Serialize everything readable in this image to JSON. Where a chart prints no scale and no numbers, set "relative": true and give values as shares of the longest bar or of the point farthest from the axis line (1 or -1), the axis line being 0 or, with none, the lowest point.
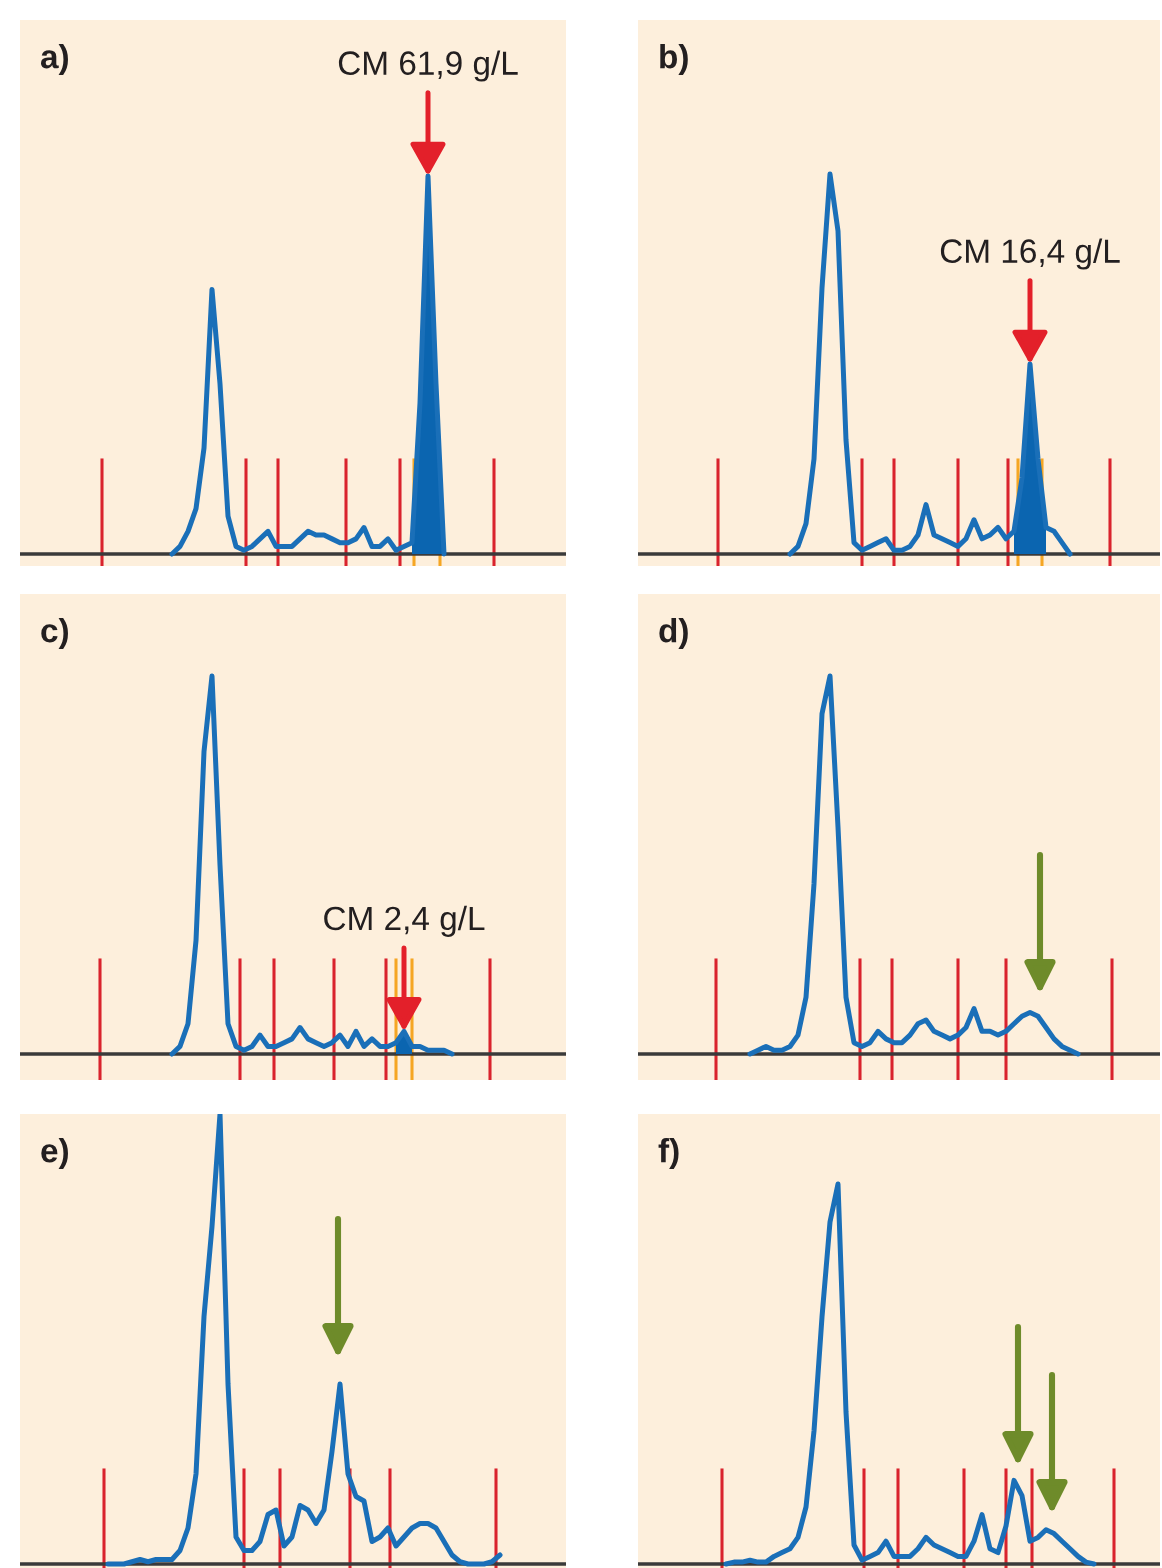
{
  "chart_data": [
    {
      "type": "line",
      "title": "a)",
      "relative": true,
      "categories": [
        null,
        null,
        null,
        null,
        null,
        null,
        null,
        null,
        null,
        null,
        null,
        null,
        null,
        null,
        null,
        null,
        null,
        null,
        null,
        null,
        null,
        null,
        null,
        null,
        null,
        null,
        null,
        null,
        null,
        null,
        null,
        null,
        null,
        null,
        null,
        null,
        null,
        null,
        null,
        null,
        null,
        null,
        null,
        null,
        null,
        null,
        null,
        null,
        null,
        null,
        null,
        null,
        null,
        null,
        null,
        null,
        null,
        null,
        null,
        null,
        null,
        null,
        null,
        null,
        null,
        null,
        null,
        null,
        null
      ],
      "series": [
        {
          "color": "#1a6fb8",
          "values": [
            null,
            null,
            null,
            null,
            null,
            null,
            null,
            null,
            null,
            null,
            null,
            null,
            null,
            null,
            null,
            null,
            null,
            null,
            null,
            0,
            0.02,
            0.06,
            0.12,
            0.28,
            0.7,
            0.45,
            0.1,
            0.02,
            0.01,
            0.02,
            0.04,
            0.06,
            0.02,
            0.02,
            0.02,
            0.04,
            0.06,
            0.05,
            0.05,
            0.04,
            0.03,
            0.03,
            0.04,
            0.07,
            0.02,
            0.02,
            0.04,
            0.01,
            0.02,
            0.03,
            0.4,
            1.0,
            0.45,
            0,
            null,
            null,
            null,
            null,
            null,
            null,
            null,
            null,
            null,
            null,
            null,
            null,
            null,
            null,
            null
          ]
        },
        {
          "type": "area",
          "color": "#0b65b0",
          "values": [
            null,
            null,
            null,
            null,
            null,
            null,
            null,
            null,
            null,
            null,
            null,
            null,
            null,
            null,
            null,
            null,
            null,
            null,
            null,
            null,
            null,
            null,
            null,
            null,
            null,
            null,
            null,
            null,
            null,
            null,
            null,
            null,
            null,
            null,
            null,
            null,
            null,
            null,
            null,
            null,
            null,
            null,
            null,
            null,
            null,
            null,
            null,
            null,
            null,
            0.03,
            0.4,
            1.0,
            0.45,
            0,
            null,
            null,
            null,
            null,
            null,
            null,
            null,
            null,
            null,
            null,
            null,
            null,
            null,
            null,
            null
          ]
        }
      ],
      "annotations": [
        {
          "text": "CM 61,9 g/L",
          "y": 1.0
        }
      ]
    },
    {
      "type": "line",
      "title": "b)",
      "relative": true,
      "categories": [
        null,
        null,
        null,
        null,
        null,
        null,
        null,
        null,
        null,
        null,
        null,
        null,
        null,
        null,
        null,
        null,
        null,
        null,
        null,
        null,
        null,
        null,
        null,
        null,
        null,
        null,
        null,
        null,
        null,
        null,
        null,
        null,
        null,
        null,
        null,
        null,
        null,
        null,
        null,
        null,
        null,
        null,
        null,
        null,
        null,
        null,
        null,
        null,
        null,
        null,
        null,
        null,
        null,
        null,
        null,
        null,
        null,
        null,
        null,
        null,
        null,
        null,
        null,
        null,
        null,
        null
      ],
      "series": [
        {
          "color": "#1a6fb8",
          "values": [
            null,
            null,
            null,
            null,
            null,
            null,
            null,
            null,
            null,
            null,
            null,
            null,
            null,
            null,
            null,
            null,
            null,
            null,
            null,
            0,
            0.02,
            0.08,
            0.25,
            0.7,
            1.0,
            0.85,
            0.3,
            0.03,
            0.01,
            0.02,
            0.03,
            0.04,
            0.01,
            0.01,
            0.02,
            0.05,
            0.13,
            0.05,
            0.04,
            0.03,
            0.02,
            0.04,
            0.09,
            0.04,
            0.05,
            0.07,
            0.04,
            0.06,
            0.2,
            0.5,
            0.25,
            0.07,
            0.06,
            0.03,
            0,
            null,
            null,
            null,
            null,
            null,
            null,
            null,
            null,
            null,
            null,
            null
          ]
        },
        {
          "type": "area",
          "color": "#0b65b0",
          "values": [
            null,
            null,
            null,
            null,
            null,
            null,
            null,
            null,
            null,
            null,
            null,
            null,
            null,
            null,
            null,
            null,
            null,
            null,
            null,
            null,
            null,
            null,
            null,
            null,
            null,
            null,
            null,
            null,
            null,
            null,
            null,
            null,
            null,
            null,
            null,
            null,
            null,
            null,
            null,
            null,
            null,
            null,
            null,
            null,
            null,
            null,
            null,
            0.06,
            0.2,
            0.5,
            0.25,
            0.07,
            null,
            null,
            null,
            null,
            null,
            null,
            null,
            null,
            null,
            null,
            null,
            null,
            null,
            null
          ]
        }
      ],
      "annotations": [
        {
          "text": "CM 16,4 g/L",
          "y": 0.5
        }
      ]
    },
    {
      "type": "line",
      "title": "c)",
      "relative": true,
      "categories": [
        null,
        null,
        null,
        null,
        null,
        null,
        null,
        null,
        null,
        null,
        null,
        null,
        null,
        null,
        null,
        null,
        null,
        null,
        null,
        null,
        null,
        null,
        null,
        null,
        null,
        null,
        null,
        null,
        null,
        null,
        null,
        null,
        null,
        null,
        null,
        null,
        null,
        null,
        null,
        null,
        null,
        null,
        null,
        null,
        null,
        null,
        null,
        null,
        null,
        null,
        null,
        null,
        null,
        null,
        null,
        null,
        null,
        null,
        null,
        null,
        null,
        null,
        null,
        null,
        null,
        null,
        null,
        null,
        null
      ],
      "series": [
        {
          "color": "#1a6fb8",
          "values": [
            null,
            null,
            null,
            null,
            null,
            null,
            null,
            null,
            null,
            null,
            null,
            null,
            null,
            null,
            null,
            null,
            null,
            null,
            null,
            0,
            0.02,
            0.08,
            0.3,
            0.8,
            1.0,
            0.5,
            0.08,
            0.02,
            0.01,
            0.02,
            0.05,
            0.02,
            0.02,
            0.03,
            0.04,
            0.07,
            0.04,
            0.03,
            0.02,
            0.03,
            0.05,
            0.02,
            0.06,
            0.02,
            0.04,
            0.02,
            0.02,
            0.03,
            0.06,
            0.02,
            0.02,
            0.01,
            0.01,
            0.01,
            0,
            null,
            null,
            null,
            null,
            null,
            null,
            null,
            null,
            null,
            null,
            null,
            null,
            null,
            null
          ]
        },
        {
          "type": "area",
          "color": "#0b65b0",
          "values": [
            null,
            null,
            null,
            null,
            null,
            null,
            null,
            null,
            null,
            null,
            null,
            null,
            null,
            null,
            null,
            null,
            null,
            null,
            null,
            null,
            null,
            null,
            null,
            null,
            null,
            null,
            null,
            null,
            null,
            null,
            null,
            null,
            null,
            null,
            null,
            null,
            null,
            null,
            null,
            null,
            null,
            null,
            null,
            null,
            null,
            null,
            null,
            0.03,
            0.06,
            0.02,
            null,
            null,
            null,
            null,
            null,
            null,
            null,
            null,
            null,
            null,
            null,
            null,
            null,
            null,
            null,
            null,
            null,
            null,
            null
          ]
        }
      ],
      "annotations": [
        {
          "text": "CM 2,4 g/L",
          "y": 0.06
        }
      ]
    },
    {
      "type": "line",
      "title": "d)",
      "relative": true,
      "categories": [
        null,
        null,
        null,
        null,
        null,
        null,
        null,
        null,
        null,
        null,
        null,
        null,
        null,
        null,
        null,
        null,
        null,
        null,
        null,
        null,
        null,
        null,
        null,
        null,
        null,
        null,
        null,
        null,
        null,
        null,
        null,
        null,
        null,
        null,
        null,
        null,
        null,
        null,
        null,
        null,
        null,
        null,
        null,
        null,
        null,
        null,
        null,
        null,
        null,
        null,
        null,
        null,
        null,
        null,
        null,
        null,
        null,
        null,
        null,
        null,
        null,
        null,
        null,
        null,
        null,
        null
      ],
      "series": [
        {
          "color": "#1a6fb8",
          "values": [
            null,
            null,
            null,
            null,
            null,
            null,
            null,
            null,
            null,
            null,
            null,
            null,
            null,
            null,
            0,
            0.01,
            0.02,
            0.01,
            0.01,
            0.02,
            0.05,
            0.15,
            0.45,
            0.9,
            1.0,
            0.6,
            0.15,
            0.03,
            0.02,
            0.03,
            0.06,
            0.04,
            0.03,
            0.03,
            0.05,
            0.08,
            0.09,
            0.06,
            0.05,
            0.04,
            0.05,
            0.07,
            0.12,
            0.06,
            0.06,
            0.05,
            0.06,
            0.08,
            0.1,
            0.11,
            0.1,
            0.07,
            0.04,
            0.02,
            0.01,
            0,
            null,
            null,
            null,
            null,
            null,
            null,
            null,
            null,
            null,
            null
          ]
        }
      ]
    },
    {
      "type": "line",
      "title": "e)",
      "relative": true,
      "categories": [
        null,
        null,
        null,
        null,
        null,
        null,
        null,
        null,
        null,
        null,
        null,
        null,
        null,
        null,
        null,
        null,
        null,
        null,
        null,
        null,
        null,
        null,
        null,
        null,
        null,
        null,
        null,
        null,
        null,
        null,
        null,
        null,
        null,
        null,
        null,
        null,
        null,
        null,
        null,
        null,
        null,
        null,
        null,
        null,
        null,
        null,
        null,
        null,
        null,
        null,
        null,
        null,
        null,
        null,
        null,
        null,
        null,
        null,
        null,
        null,
        null,
        null,
        null,
        null,
        null,
        null,
        null,
        null,
        null
      ],
      "series": [
        {
          "color": "#1a6fb8",
          "values": [
            null,
            null,
            null,
            null,
            null,
            null,
            null,
            null,
            null,
            null,
            null,
            0,
            0,
            0,
            0.005,
            0.01,
            0.005,
            0.01,
            0.01,
            0.01,
            0.03,
            0.08,
            0.2,
            0.55,
            0.75,
            1.0,
            0.4,
            0.06,
            0.03,
            0.03,
            0.05,
            0.11,
            0.12,
            0.04,
            0.06,
            0.13,
            0.12,
            0.09,
            0.12,
            0.25,
            0.4,
            0.2,
            0.15,
            0.14,
            0.05,
            0.06,
            0.08,
            0.04,
            0.06,
            0.08,
            0.09,
            0.09,
            0.08,
            0.05,
            0.02,
            0.005,
            0,
            0,
            0,
            0.005,
            0.02,
            null,
            null,
            null,
            null,
            null,
            null,
            null,
            null
          ]
        }
      ]
    },
    {
      "type": "line",
      "title": "f)",
      "relative": true,
      "categories": [
        null,
        null,
        null,
        null,
        null,
        null,
        null,
        null,
        null,
        null,
        null,
        null,
        null,
        null,
        null,
        null,
        null,
        null,
        null,
        null,
        null,
        null,
        null,
        null,
        null,
        null,
        null,
        null,
        null,
        null,
        null,
        null,
        null,
        null,
        null,
        null,
        null,
        null,
        null,
        null,
        null,
        null,
        null,
        null,
        null,
        null,
        null,
        null,
        null,
        null,
        null,
        null,
        null,
        null,
        null,
        null,
        null,
        null,
        null,
        null,
        null,
        null,
        null,
        null,
        null,
        null
      ],
      "series": [
        {
          "color": "#1a6fb8",
          "values": [
            null,
            null,
            null,
            null,
            null,
            null,
            null,
            null,
            null,
            null,
            null,
            0,
            0.005,
            0.005,
            0.01,
            0.005,
            0.005,
            0.02,
            0.03,
            0.04,
            0.07,
            0.15,
            0.35,
            0.65,
            0.9,
            1.0,
            0.4,
            0.05,
            0.01,
            0.02,
            0.03,
            0.06,
            0.02,
            0.02,
            0.02,
            0.04,
            0.07,
            0.05,
            0.04,
            0.03,
            0.02,
            0.02,
            0.06,
            0.13,
            0.04,
            0.03,
            0.1,
            0.22,
            0.18,
            0.06,
            0.07,
            0.09,
            0.08,
            0.06,
            0.04,
            0.02,
            0.005,
            0,
            null,
            null,
            null,
            null,
            null,
            null,
            null,
            null
          ]
        }
      ]
    }
  ]
}
